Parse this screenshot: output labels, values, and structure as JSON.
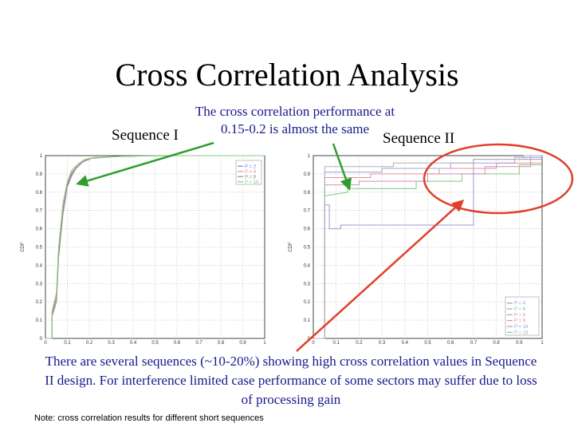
{
  "slide": {
    "title": "Cross Correlation Analysis",
    "subtitle_lines": [
      "The cross correlation performance at",
      "0.15-0.2 is almost the same"
    ],
    "label_left": "Sequence I",
    "label_right": "Sequence II",
    "bottom_text": "There are several sequences (~10-20%) showing high cross correlation values in Sequence II design. For interference limited case performance of some sectors may suffer due to loss of processing gain",
    "note": "Note: cross correlation results for different short sequences",
    "annotation_colors": {
      "green_arrow": "#2e9e2e",
      "red_arrow": "#e0402a",
      "red_ellipse": "#e0402a"
    }
  },
  "chart_data": [
    {
      "type": "line",
      "ylabel": "CDF",
      "xlim": [
        0,
        1
      ],
      "ylim": [
        0,
        1
      ],
      "xticks": [
        "0",
        "0.1",
        "0.2",
        "0.3",
        "0.4",
        "0.5",
        "0.6",
        "0.7",
        "0.8",
        "0.9",
        "1"
      ],
      "yticks": [
        "0",
        "0.1",
        "0.2",
        "0.3",
        "0.4",
        "0.5",
        "0.6",
        "0.7",
        "0.8",
        "0.9",
        "1"
      ],
      "grid": true,
      "legend_position": "top-right",
      "series": [
        {
          "name": "P = 2",
          "color": "#7f7fd0",
          "points": [
            [
              0,
              0
            ],
            [
              0.03,
              0
            ],
            [
              0.03,
              0.13
            ],
            [
              0.05,
              0.22
            ],
            [
              0.06,
              0.46
            ],
            [
              0.08,
              0.7
            ],
            [
              0.1,
              0.84
            ],
            [
              0.12,
              0.9
            ],
            [
              0.14,
              0.94
            ],
            [
              0.17,
              0.97
            ],
            [
              0.2,
              0.985
            ],
            [
              0.3,
              0.995
            ],
            [
              0.55,
              1
            ],
            [
              1,
              1
            ]
          ]
        },
        {
          "name": "P = 4",
          "color": "#ea8a8a",
          "points": [
            [
              0,
              0
            ],
            [
              0.03,
              0
            ],
            [
              0.03,
              0.14
            ],
            [
              0.05,
              0.23
            ],
            [
              0.06,
              0.48
            ],
            [
              0.08,
              0.72
            ],
            [
              0.1,
              0.85
            ],
            [
              0.12,
              0.91
            ],
            [
              0.15,
              0.95
            ],
            [
              0.18,
              0.975
            ],
            [
              0.22,
              0.99
            ],
            [
              0.35,
              0.997
            ],
            [
              0.6,
              1
            ],
            [
              1,
              1
            ]
          ]
        },
        {
          "name": "P = 8",
          "color": "#8e8e8e",
          "points": [
            [
              0,
              0
            ],
            [
              0.03,
              0
            ],
            [
              0.03,
              0.12
            ],
            [
              0.05,
              0.2
            ],
            [
              0.06,
              0.44
            ],
            [
              0.08,
              0.68
            ],
            [
              0.1,
              0.83
            ],
            [
              0.12,
              0.89
            ],
            [
              0.14,
              0.93
            ],
            [
              0.17,
              0.965
            ],
            [
              0.21,
              0.985
            ],
            [
              0.32,
              0.995
            ],
            [
              0.5,
              1
            ],
            [
              1,
              1
            ]
          ]
        },
        {
          "name": "P = 16",
          "color": "#7fcf7f",
          "points": [
            [
              0,
              0
            ],
            [
              0.03,
              0
            ],
            [
              0.03,
              0.15
            ],
            [
              0.05,
              0.25
            ],
            [
              0.06,
              0.5
            ],
            [
              0.08,
              0.74
            ],
            [
              0.1,
              0.86
            ],
            [
              0.12,
              0.92
            ],
            [
              0.15,
              0.955
            ],
            [
              0.18,
              0.98
            ],
            [
              0.23,
              0.99
            ],
            [
              0.4,
              0.998
            ],
            [
              0.65,
              1
            ],
            [
              1,
              1
            ]
          ]
        }
      ]
    },
    {
      "type": "line",
      "ylabel": "CDF",
      "xlim": [
        0,
        1
      ],
      "ylim": [
        0,
        1
      ],
      "xticks": [
        "0",
        "0.1",
        "0.2",
        "0.3",
        "0.4",
        "0.5",
        "0.6",
        "0.7",
        "0.8",
        "0.9",
        "1"
      ],
      "yticks": [
        "0",
        "0.1",
        "0.2",
        "0.3",
        "0.4",
        "0.5",
        "0.6",
        "0.7",
        "0.8",
        "0.9",
        "1"
      ],
      "grid": true,
      "legend_position": "bottom-right",
      "series": [
        {
          "name": "P = 4",
          "color": "#9a9ad8",
          "points": [
            [
              0,
              0
            ],
            [
              0.05,
              0
            ],
            [
              0.05,
              0.73
            ],
            [
              0.07,
              0.73
            ],
            [
              0.07,
              0.6
            ],
            [
              0.12,
              0.6
            ],
            [
              0.12,
              0.62
            ],
            [
              0.7,
              0.62
            ],
            [
              0.7,
              0.98
            ],
            [
              1,
              0.98
            ]
          ]
        },
        {
          "name": "P = 6",
          "color": "#80c880",
          "points": [
            [
              0,
              0
            ],
            [
              0.05,
              0
            ],
            [
              0.05,
              0.78
            ],
            [
              0.15,
              0.8
            ],
            [
              0.15,
              0.82
            ],
            [
              0.45,
              0.82
            ],
            [
              0.45,
              0.86
            ],
            [
              0.65,
              0.86
            ],
            [
              0.65,
              0.9
            ],
            [
              0.9,
              0.9
            ],
            [
              0.9,
              0.95
            ],
            [
              1,
              0.95
            ]
          ]
        },
        {
          "name": "P = 8",
          "color": "#d090c0",
          "points": [
            [
              0,
              0
            ],
            [
              0.05,
              0
            ],
            [
              0.05,
              0.84
            ],
            [
              0.2,
              0.84
            ],
            [
              0.2,
              0.86
            ],
            [
              0.5,
              0.86
            ],
            [
              0.5,
              0.9
            ],
            [
              0.75,
              0.9
            ],
            [
              0.75,
              0.94
            ],
            [
              0.95,
              0.94
            ],
            [
              0.95,
              1
            ],
            [
              1,
              1
            ]
          ]
        },
        {
          "name": "P = 9",
          "color": "#e89090",
          "points": [
            [
              0,
              0
            ],
            [
              0.05,
              0
            ],
            [
              0.05,
              0.88
            ],
            [
              0.25,
              0.88
            ],
            [
              0.25,
              0.9
            ],
            [
              0.55,
              0.9
            ],
            [
              0.55,
              0.93
            ],
            [
              0.8,
              0.93
            ],
            [
              0.8,
              0.96
            ],
            [
              1,
              0.96
            ]
          ]
        },
        {
          "name": "P = 16",
          "color": "#a0a0e0",
          "points": [
            [
              0,
              0
            ],
            [
              0.05,
              0
            ],
            [
              0.05,
              0.91
            ],
            [
              0.3,
              0.91
            ],
            [
              0.3,
              0.93
            ],
            [
              0.6,
              0.93
            ],
            [
              0.6,
              0.96
            ],
            [
              0.88,
              0.96
            ],
            [
              0.88,
              0.99
            ],
            [
              1,
              0.99
            ]
          ]
        },
        {
          "name": "P = 18",
          "color": "#b0b0b0",
          "points": [
            [
              0,
              0
            ],
            [
              0.05,
              0
            ],
            [
              0.05,
              0.94
            ],
            [
              0.35,
              0.94
            ],
            [
              0.35,
              0.96
            ],
            [
              0.7,
              0.96
            ],
            [
              0.7,
              0.98
            ],
            [
              0.92,
              0.98
            ],
            [
              0.92,
              1
            ],
            [
              1,
              1
            ]
          ]
        }
      ]
    }
  ]
}
